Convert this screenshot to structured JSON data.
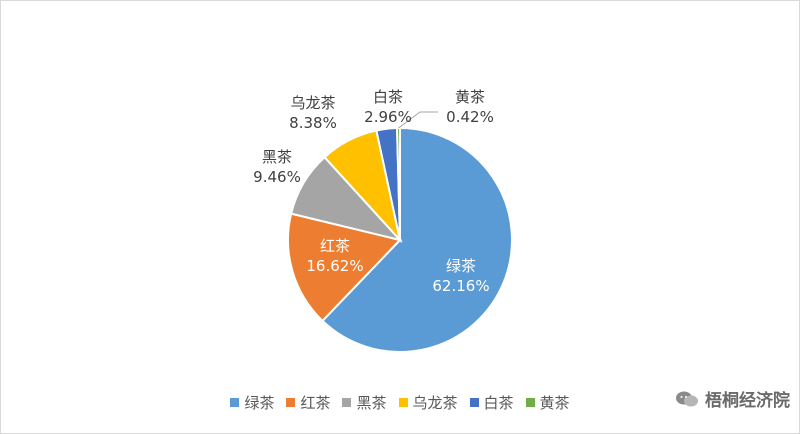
{
  "chart_data": {
    "type": "pie",
    "categories": [
      "绿茶",
      "红茶",
      "黑茶",
      "乌龙茶",
      "白茶",
      "黄茶"
    ],
    "values": [
      62.16,
      16.62,
      9.46,
      8.38,
      2.96,
      0.42
    ],
    "value_labels": [
      "62.16%",
      "16.62%",
      "9.46%",
      "8.38%",
      "2.96%",
      "0.42%"
    ],
    "colors": [
      "#5b9bd5",
      "#ed7d31",
      "#a5a5a5",
      "#ffc000",
      "#4472c4",
      "#70ad47"
    ],
    "legend_position": "bottom"
  },
  "watermark": {
    "text": "梧桐经济院"
  }
}
